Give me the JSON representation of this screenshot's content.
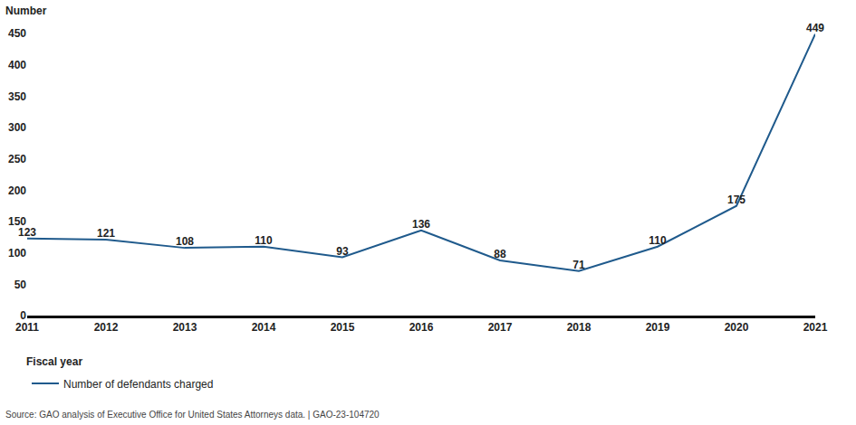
{
  "chart_data": {
    "type": "line",
    "y_label": "Number",
    "x_label": "Fiscal year",
    "source": "Source: GAO analysis of Executive Office for United States Attorneys data. | GAO-23-104720",
    "x": [
      2011,
      2012,
      2013,
      2014,
      2015,
      2016,
      2017,
      2018,
      2019,
      2020,
      2021
    ],
    "series": [
      {
        "name": "Number of defendants charged",
        "color": "#1f5a8c",
        "values": [
          123,
          121,
          108,
          110,
          93,
          136,
          88,
          71,
          110,
          175,
          449
        ]
      }
    ],
    "xlim": [
      2011,
      2021
    ],
    "xticks": [
      2011,
      2012,
      2013,
      2014,
      2015,
      2016,
      2017,
      2018,
      2019,
      2020,
      2021
    ],
    "ylim": [
      0,
      450
    ],
    "yticks": [
      0,
      50,
      100,
      150,
      200,
      250,
      300,
      350,
      400,
      450
    ],
    "grid": false,
    "data_labels": true,
    "legend": "bottom left"
  }
}
